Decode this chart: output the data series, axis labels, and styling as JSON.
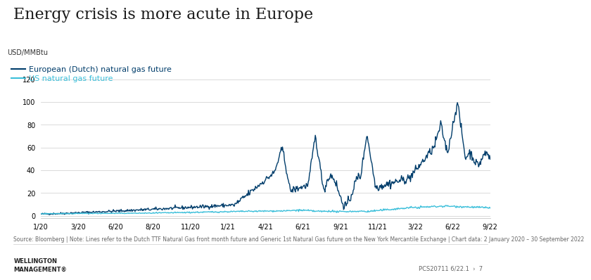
{
  "title": "Energy crisis is more acute in Europe",
  "ylabel": "USD/MMBtu",
  "yticks": [
    0,
    20,
    40,
    60,
    80,
    100,
    120
  ],
  "ylim": [
    -2,
    125
  ],
  "xtick_labels": [
    "1/20",
    "3/20",
    "6/20",
    "8/20",
    "11/20",
    "1/21",
    "4/21",
    "6/21",
    "9/21",
    "11/21",
    "3/22",
    "6/22",
    "9/22"
  ],
  "eu_color": "#003d6b",
  "us_color": "#3bbfda",
  "legend_eu": "European (Dutch) natural gas future",
  "legend_us": "US natural gas future",
  "source_text": "Source: Bloomberg | Note: Lines refer to the Dutch TTF Natural Gas front month future and Generic 1st Natural Gas future on the New York Mercantile Exchange | Chart data: 2 January 2020 – 30 September 2022",
  "footer_left_line1": "WELLINGTON",
  "footer_left_line2": "MANAGEMENT®",
  "footer_right": "PCS20711 6/22.1  ›  7",
  "background_color": "#ffffff",
  "title_fontsize": 16,
  "axis_fontsize": 7,
  "legend_fontsize": 8,
  "source_fontsize": 5.5,
  "footer_fontsize": 6
}
